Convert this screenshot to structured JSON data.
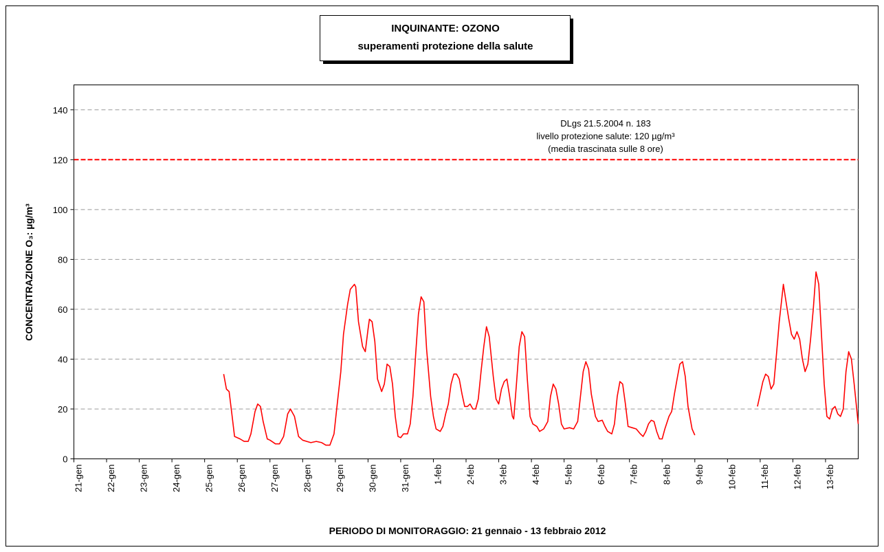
{
  "chart_data": {
    "type": "line",
    "title": "INQUINANTE: OZONO",
    "subtitle": "superamenti protezione della salute",
    "x_label": "PERIODO DI MONITORAGGIO: 21 gennaio - 13 febbraio 2012",
    "y_label": "CONCENTRAZIONE O₃: µg/m³",
    "color": "#ff0000",
    "grid": true,
    "ylim": [
      0,
      150
    ],
    "yticks": [
      0,
      20,
      40,
      60,
      80,
      100,
      120,
      140
    ],
    "xlim": [
      0,
      576
    ],
    "xticks": [
      {
        "value": 0,
        "label": "21-gen"
      },
      {
        "value": 24,
        "label": "22-gen"
      },
      {
        "value": 48,
        "label": "23-gen"
      },
      {
        "value": 72,
        "label": "24-gen"
      },
      {
        "value": 96,
        "label": "25-gen"
      },
      {
        "value": 120,
        "label": "26-gen"
      },
      {
        "value": 144,
        "label": "27-gen"
      },
      {
        "value": 168,
        "label": "28-gen"
      },
      {
        "value": 192,
        "label": "29-gen"
      },
      {
        "value": 216,
        "label": "30-gen"
      },
      {
        "value": 240,
        "label": "31-gen"
      },
      {
        "value": 264,
        "label": "1-feb"
      },
      {
        "value": 288,
        "label": "2-feb"
      },
      {
        "value": 312,
        "label": "3-feb"
      },
      {
        "value": 336,
        "label": "4-feb"
      },
      {
        "value": 360,
        "label": "5-feb"
      },
      {
        "value": 384,
        "label": "6-feb"
      },
      {
        "value": 408,
        "label": "7-feb"
      },
      {
        "value": 432,
        "label": "8-feb"
      },
      {
        "value": 456,
        "label": "9-feb"
      },
      {
        "value": 480,
        "label": "10-feb"
      },
      {
        "value": 504,
        "label": "11-feb"
      },
      {
        "value": 528,
        "label": "12-feb"
      },
      {
        "value": 552,
        "label": "13-feb"
      }
    ],
    "threshold": {
      "value": 120,
      "color": "#ff0000",
      "labels": [
        "DLgs 21.5.2004 n. 183",
        "livello protezione salute: 120 µg/m³",
        "(media trascinata sulle 8 ore)"
      ]
    },
    "x": [
      110,
      112,
      114,
      116,
      118,
      122,
      125,
      128,
      130,
      133,
      135,
      137,
      139,
      142,
      144,
      148,
      151,
      154,
      157,
      159,
      162,
      165,
      168,
      171,
      174,
      178,
      182,
      185,
      188,
      191,
      193,
      196,
      198,
      201,
      203,
      206,
      207,
      209,
      212,
      214,
      216,
      217,
      219,
      221,
      223,
      226,
      228,
      230,
      232,
      234,
      236,
      238,
      240,
      242,
      245,
      247,
      249,
      251,
      253,
      255,
      257,
      259,
      262,
      264,
      266,
      269,
      271,
      273,
      275,
      277,
      279,
      281,
      283,
      285,
      287,
      289,
      291,
      293,
      295,
      297,
      299,
      301,
      303,
      305,
      308,
      310,
      312,
      314,
      316,
      318,
      320,
      322,
      323,
      325,
      327,
      329,
      331,
      333,
      335,
      337,
      340,
      342,
      345,
      348,
      350,
      352,
      354,
      356,
      358,
      360,
      364,
      367,
      370,
      372,
      374,
      376,
      378,
      380,
      383,
      385,
      388,
      390,
      392,
      395,
      397,
      399,
      401,
      403,
      405,
      407,
      410,
      413,
      416,
      418,
      420,
      422,
      424,
      426,
      428,
      430,
      432,
      434,
      437,
      439,
      441,
      443,
      445,
      447,
      449,
      451,
      454,
      456,
      480,
      502,
      504,
      506,
      508,
      510,
      512,
      514,
      516,
      518,
      520,
      521,
      523,
      525,
      527,
      529,
      531,
      533,
      535,
      537,
      539,
      541,
      543,
      545,
      547,
      549,
      551,
      553,
      555,
      557,
      559,
      561,
      563,
      565,
      567,
      569,
      571,
      573,
      576
    ],
    "values": [
      34,
      28,
      27,
      18,
      9,
      8,
      7,
      7,
      10,
      19,
      22,
      21,
      15,
      8,
      7.5,
      6,
      6,
      9,
      18,
      20,
      17,
      9,
      7.5,
      7,
      6.5,
      7,
      6.5,
      5.5,
      5.5,
      10,
      20,
      35,
      50,
      62,
      68,
      70,
      69,
      55,
      45,
      43,
      52,
      56,
      55,
      47,
      32,
      27,
      30,
      38,
      37,
      30,
      17,
      9,
      8.5,
      10,
      10,
      14,
      25,
      42,
      58,
      65,
      63,
      44,
      25,
      17,
      12,
      11,
      13,
      18,
      22,
      30,
      34,
      34,
      32,
      26,
      21,
      21,
      22,
      20,
      20,
      24,
      35,
      45,
      53,
      49,
      33,
      24,
      22,
      28,
      31,
      32,
      25,
      17,
      16,
      30,
      45,
      51,
      49,
      32,
      17,
      14,
      13,
      11,
      12,
      15,
      25,
      30,
      28,
      22,
      14,
      12,
      12.5,
      12,
      15,
      25,
      35,
      39,
      36,
      26,
      17,
      15,
      15.5,
      13,
      11,
      10,
      14,
      25,
      31,
      30,
      22,
      13,
      12.5,
      12,
      10,
      9,
      11,
      14,
      15.5,
      15,
      11,
      8,
      8,
      12,
      17,
      19,
      26,
      32,
      38,
      39,
      33,
      21,
      12,
      9.5,
      null,
      21,
      26,
      31,
      34,
      33,
      28,
      30,
      42,
      55,
      65,
      70,
      63,
      56,
      50,
      48,
      51,
      48,
      40,
      35,
      38,
      48,
      60,
      75,
      70,
      50,
      30,
      17,
      16,
      20,
      21,
      18,
      17,
      20,
      35,
      43,
      40,
      30,
      14
    ]
  }
}
